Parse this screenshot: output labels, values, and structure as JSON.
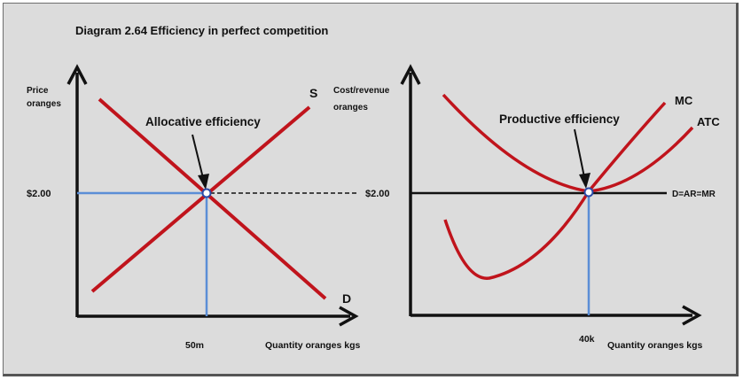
{
  "title": "Diagram 2.64 Efficiency in perfect competition",
  "left": {
    "y_label_1": "Price",
    "y_label_2": "oranges",
    "price_label": "$2.00",
    "price_label_right": "$2.00",
    "supply_label": "S",
    "demand_label": "D",
    "annotation": "Allocative efficiency",
    "quantity_label": "50m",
    "x_label": "Quantity oranges kgs"
  },
  "right": {
    "y_label_1": "Cost/revenue",
    "y_label_2": "oranges",
    "mc_label": "MC",
    "atc_label": "ATC",
    "demand_label": "D=AR=MR",
    "annotation": "Productive efficiency",
    "quantity_label": "40k",
    "x_label": "Quantity oranges kgs"
  },
  "colors": {
    "curve": "#c0141c",
    "guide": "#5b8ed6",
    "axis": "#111111",
    "background": "#dcdcdc"
  }
}
